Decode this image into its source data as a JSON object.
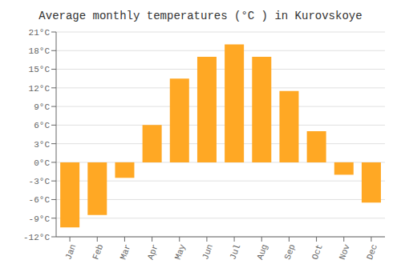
{
  "chart_data": {
    "type": "bar",
    "title": "Average monthly temperatures (°C ) in Kurovskoye",
    "categories": [
      "Jan",
      "Feb",
      "Mar",
      "Apr",
      "May",
      "Jun",
      "Jul",
      "Aug",
      "Sep",
      "Oct",
      "Nov",
      "Dec"
    ],
    "values": [
      -10.5,
      -8.5,
      -2.5,
      6.0,
      13.5,
      17.0,
      19.0,
      17.0,
      11.5,
      5.0,
      -2.0,
      -6.5
    ],
    "color": "#FFA824",
    "ylim": [
      -12,
      21
    ],
    "yticks": [
      {
        "value": -12,
        "label": "-12°C"
      },
      {
        "value": -9,
        "label": "-9°C"
      },
      {
        "value": -6,
        "label": "-6°C"
      },
      {
        "value": -3,
        "label": "-3°C"
      },
      {
        "value": 0,
        "label": "0°C"
      },
      {
        "value": 3,
        "label": "3°C"
      },
      {
        "value": 6,
        "label": "6°C"
      },
      {
        "value": 9,
        "label": "9°C"
      },
      {
        "value": 12,
        "label": "12°C"
      },
      {
        "value": 15,
        "label": "15°C"
      },
      {
        "value": 18,
        "label": "18°C"
      },
      {
        "value": 21,
        "label": "21°C"
      }
    ],
    "grid": true
  }
}
